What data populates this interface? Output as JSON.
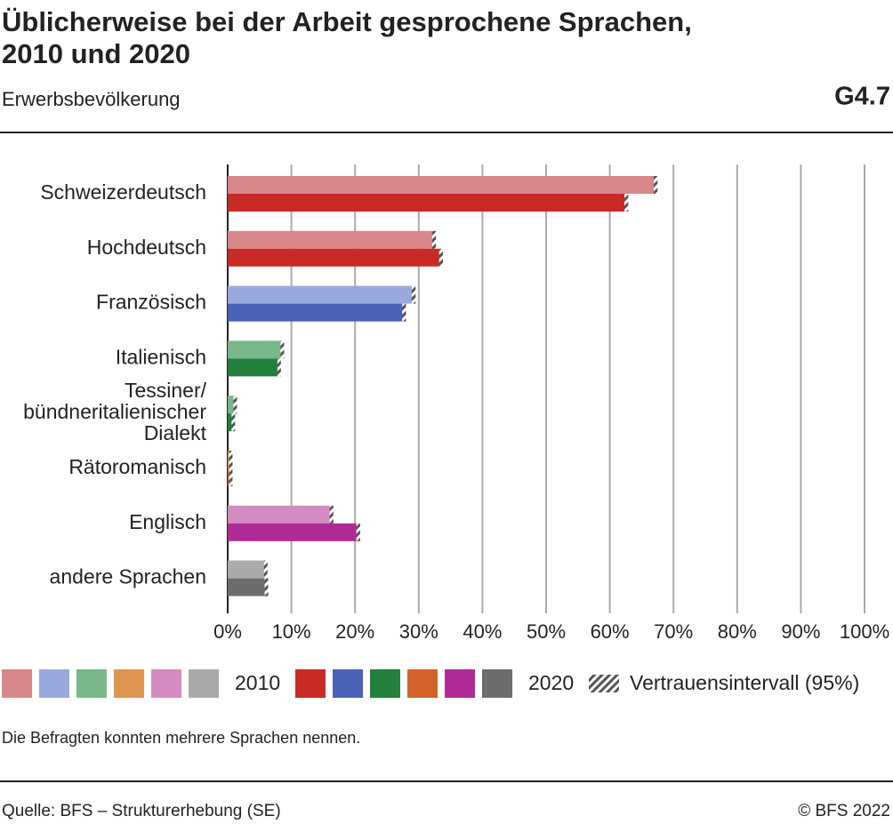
{
  "chart_data": {
    "type": "bar",
    "orientation": "horizontal",
    "title": "Üblicherweise bei der Arbeit gesprochene Sprachen,\n2010 und 2020",
    "subtitle": "Erwerbsbevölkerung",
    "chart_id": "G4.7",
    "categories": [
      "Schweizerdeutsch",
      "Hochdeutsch",
      "Französisch",
      "Italienisch",
      "Tessiner/\nbündneritalienischer\nDialekt",
      "Rätoromanisch",
      "Englisch",
      "andere Sprachen"
    ],
    "series": [
      {
        "name": "2010",
        "colors": [
          "#d9868a",
          "#d9868a",
          "#9aa9dd",
          "#78b88a",
          "#78b88a",
          "#dd9550",
          "#d48bc0",
          "#aaaaaa"
        ],
        "values": [
          67.2,
          32.4,
          29.2,
          8.5,
          1.0,
          0.3,
          16.3,
          5.9
        ],
        "errors": [
          0.3,
          0.3,
          0.3,
          0.2,
          0.1,
          0.1,
          0.3,
          0.2
        ]
      },
      {
        "name": "2020",
        "colors": [
          "#c82a25",
          "#c82a25",
          "#4a62b8",
          "#23803c",
          "#23803c",
          "#d4622a",
          "#b02a96",
          "#6d6d6d"
        ],
        "values": [
          62.6,
          33.5,
          27.7,
          8.0,
          0.7,
          0.3,
          20.5,
          6.0
        ],
        "errors": [
          0.3,
          0.3,
          0.3,
          0.2,
          0.1,
          0.1,
          0.3,
          0.2
        ]
      }
    ],
    "xlim": [
      0,
      100
    ],
    "xticks": [
      {
        "value": 0,
        "label": "0%"
      },
      {
        "value": 10,
        "label": "10%"
      },
      {
        "value": 20,
        "label": "20%"
      },
      {
        "value": 30,
        "label": "30%"
      },
      {
        "value": 40,
        "label": "40%"
      },
      {
        "value": 50,
        "label": "50%"
      },
      {
        "value": 60,
        "label": "60%"
      },
      {
        "value": 70,
        "label": "70%"
      },
      {
        "value": 80,
        "label": "80%"
      },
      {
        "value": 90,
        "label": "90%"
      },
      {
        "value": 100,
        "label": "100%"
      }
    ],
    "grid": true,
    "error_label": "Vertrauensintervall (95%)",
    "note": "Die Befragten konnten mehrere Sprachen nennen.",
    "source": "Quelle: BFS – Strukturerhebung (SE)",
    "copyright": "© BFS 2022"
  }
}
